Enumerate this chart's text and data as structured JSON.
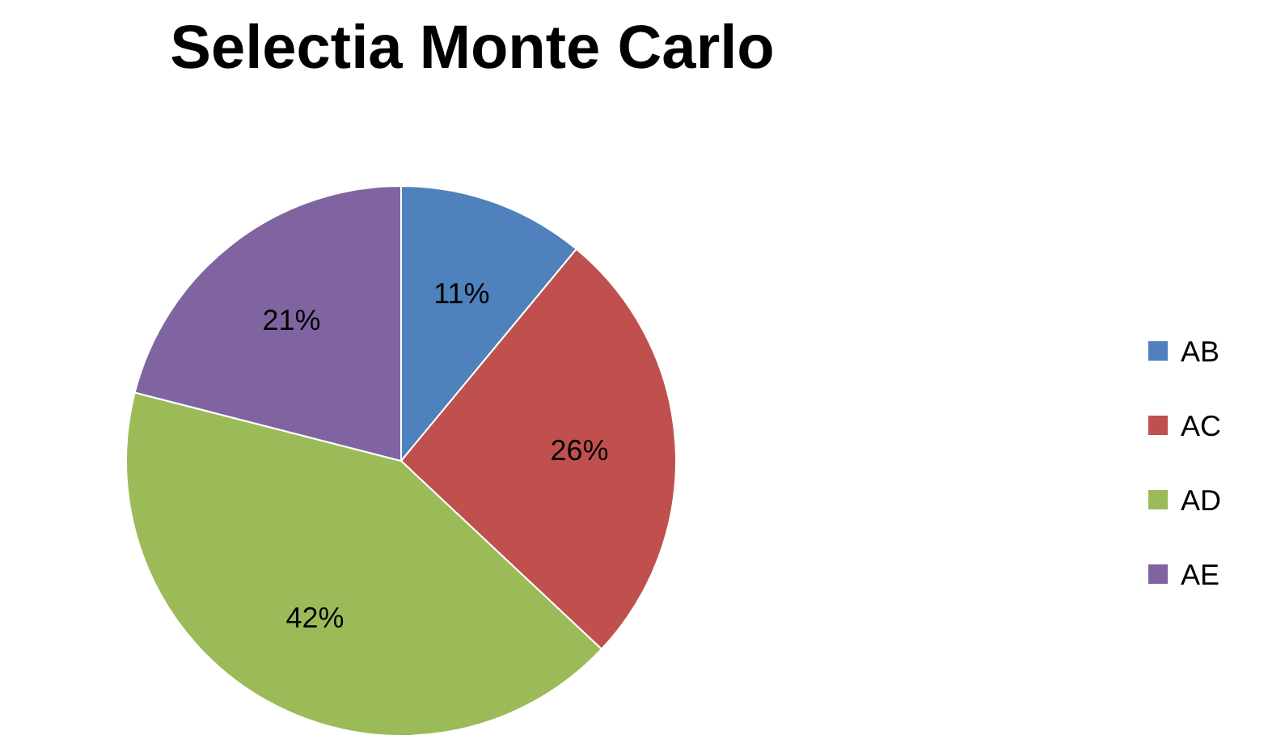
{
  "chart_data": {
    "type": "pie",
    "title": "Selectia Monte Carlo",
    "categories": [
      "AB",
      "AC",
      "AD",
      "AE"
    ],
    "values": [
      11,
      26,
      42,
      21
    ],
    "value_labels": [
      "11%",
      "26%",
      "42%",
      "21%"
    ],
    "colors": [
      "#4f81bd",
      "#c0504d",
      "#9bbb59",
      "#8064a2"
    ],
    "legend": "right"
  }
}
